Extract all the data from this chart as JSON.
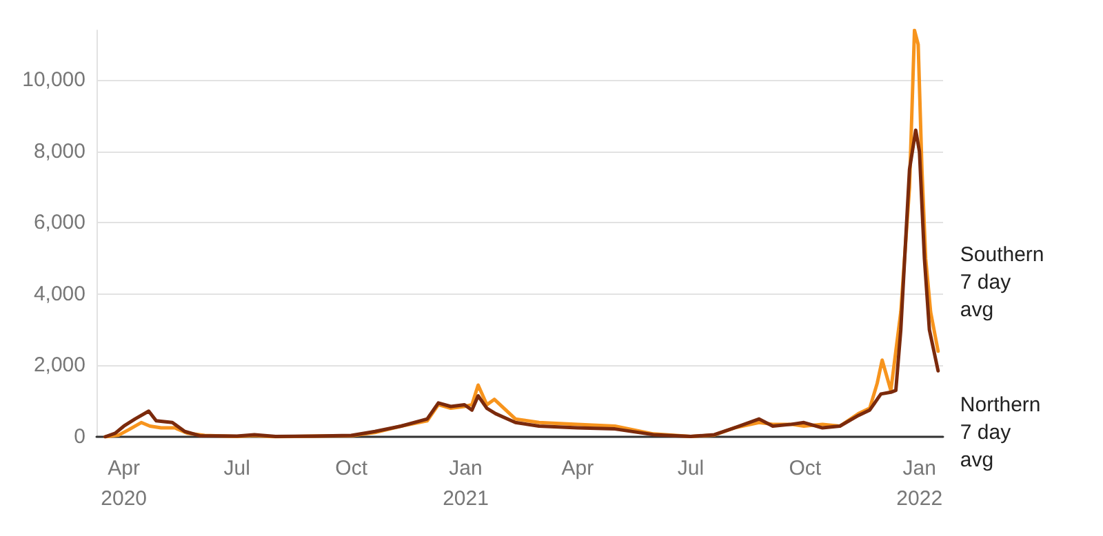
{
  "chart_data": {
    "type": "line",
    "xlim": [
      "2020-03-10",
      "2022-01-20"
    ],
    "ylim": [
      0,
      11400
    ],
    "xticks": [
      {
        "value": "2020-04-01",
        "label": "Apr\n2020"
      },
      {
        "value": "2020-07-01",
        "label": "Jul"
      },
      {
        "value": "2020-10-01",
        "label": "Oct"
      },
      {
        "value": "2021-01-01",
        "label": "Jan\n2021"
      },
      {
        "value": "2021-04-01",
        "label": "Apr"
      },
      {
        "value": "2021-07-01",
        "label": "Jul"
      },
      {
        "value": "2021-10-01",
        "label": "Oct"
      },
      {
        "value": "2022-01-01",
        "label": "Jan\n2022"
      }
    ],
    "yticks": [
      0,
      {
        "value": 2000,
        "label": "2,000"
      },
      {
        "value": 4000,
        "label": "4,000"
      },
      {
        "value": 6000,
        "label": "6,000"
      },
      {
        "value": 8000,
        "label": "8,000"
      },
      {
        "value": 10000,
        "label": "10,000"
      }
    ],
    "grid": "y",
    "legend": false,
    "marker": "none",
    "line_style": "solid",
    "series": [
      {
        "name": "Southern\n7 day\navg",
        "color": "#f7941d",
        "x": [
          "2020-03-17",
          "2020-03-28",
          "2020-04-05",
          "2020-04-15",
          "2020-04-22",
          "2020-05-01",
          "2020-05-12",
          "2020-05-22",
          "2020-06-05",
          "2020-07-01",
          "2020-07-15",
          "2020-08-01",
          "2020-09-01",
          "2020-10-01",
          "2020-10-20",
          "2020-11-10",
          "2020-12-01",
          "2020-12-10",
          "2020-12-20",
          "2020-12-31",
          "2021-01-06",
          "2021-01-11",
          "2021-01-18",
          "2021-01-24",
          "2021-02-10",
          "2021-03-01",
          "2021-04-01",
          "2021-05-01",
          "2021-06-01",
          "2021-07-01",
          "2021-07-20",
          "2021-08-05",
          "2021-08-25",
          "2021-09-05",
          "2021-09-20",
          "2021-09-30",
          "2021-10-15",
          "2021-10-29",
          "2021-11-13",
          "2021-11-22",
          "2021-11-28",
          "2021-12-02",
          "2021-12-09",
          "2021-12-17",
          "2021-12-24",
          "2021-12-28",
          "2021-12-31",
          "2022-01-03",
          "2022-01-06",
          "2022-01-10",
          "2022-01-16"
        ],
        "values": [
          0,
          50,
          200,
          400,
          300,
          250,
          250,
          100,
          40,
          10,
          40,
          0,
          20,
          30,
          120,
          300,
          450,
          900,
          800,
          850,
          900,
          1450,
          900,
          1050,
          500,
          400,
          350,
          300,
          80,
          10,
          50,
          250,
          400,
          350,
          350,
          300,
          350,
          300,
          650,
          800,
          1500,
          2150,
          1300,
          3500,
          7000,
          11400,
          11000,
          7500,
          5000,
          3500,
          2400
        ]
      },
      {
        "name": "Northern\n7 day\navg",
        "color": "#7b2a0c",
        "x": [
          "2020-03-17",
          "2020-03-25",
          "2020-04-01",
          "2020-04-10",
          "2020-04-21",
          "2020-04-27",
          "2020-05-10",
          "2020-05-20",
          "2020-06-01",
          "2020-07-01",
          "2020-07-15",
          "2020-08-01",
          "2020-09-01",
          "2020-10-01",
          "2020-10-20",
          "2020-11-10",
          "2020-12-01",
          "2020-12-10",
          "2020-12-20",
          "2020-12-31",
          "2021-01-06",
          "2021-01-11",
          "2021-01-18",
          "2021-01-25",
          "2021-02-10",
          "2021-03-01",
          "2021-04-01",
          "2021-05-01",
          "2021-06-01",
          "2021-07-01",
          "2021-07-20",
          "2021-08-05",
          "2021-08-25",
          "2021-09-05",
          "2021-09-20",
          "2021-09-30",
          "2021-10-15",
          "2021-10-29",
          "2021-11-13",
          "2021-11-22",
          "2021-12-01",
          "2021-12-09",
          "2021-12-13",
          "2021-12-17",
          "2021-12-24",
          "2021-12-29",
          "2022-01-01",
          "2022-01-05",
          "2022-01-09",
          "2022-01-16"
        ],
        "values": [
          0,
          100,
          300,
          500,
          720,
          450,
          400,
          150,
          30,
          20,
          60,
          10,
          20,
          40,
          150,
          300,
          500,
          950,
          850,
          900,
          750,
          1150,
          800,
          650,
          400,
          300,
          250,
          220,
          60,
          10,
          60,
          250,
          500,
          300,
          350,
          400,
          250,
          300,
          600,
          750,
          1200,
          1250,
          1300,
          3000,
          7500,
          8600,
          8000,
          5000,
          3000,
          1850
        ]
      }
    ]
  }
}
